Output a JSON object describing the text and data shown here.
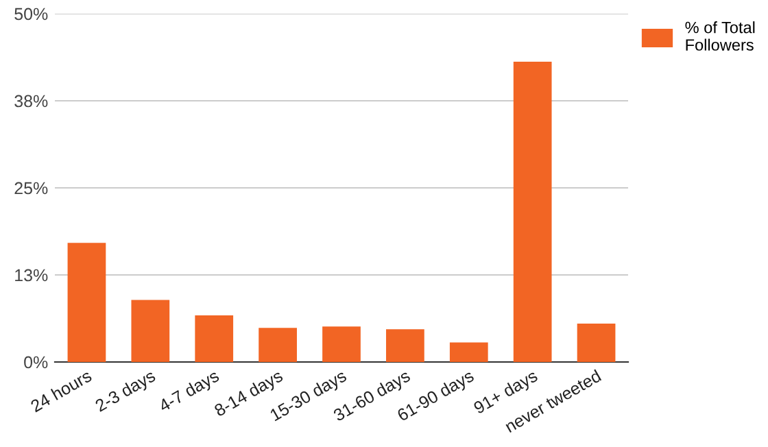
{
  "chart_data": {
    "type": "bar",
    "categories": [
      "24 hours",
      "2-3 days",
      "4-7 days",
      "8-14 days",
      "15-30 days",
      "31-60 days",
      "61-90 days",
      "91+ days",
      "never tweeted"
    ],
    "series": [
      {
        "name": "% of Total Followers",
        "color": "#f26524",
        "values": [
          17.1,
          8.9,
          6.7,
          4.9,
          5.1,
          4.7,
          2.8,
          43.1,
          5.5
        ]
      }
    ],
    "ylim": [
      0,
      50
    ],
    "yticks": [
      {
        "value": 0,
        "label": "0%"
      },
      {
        "value": 12.5,
        "label": "13%"
      },
      {
        "value": 25,
        "label": "25%"
      },
      {
        "value": 37.5,
        "label": "38%"
      },
      {
        "value": 50,
        "label": "50%"
      }
    ],
    "grid": "y",
    "legend": "top right"
  }
}
